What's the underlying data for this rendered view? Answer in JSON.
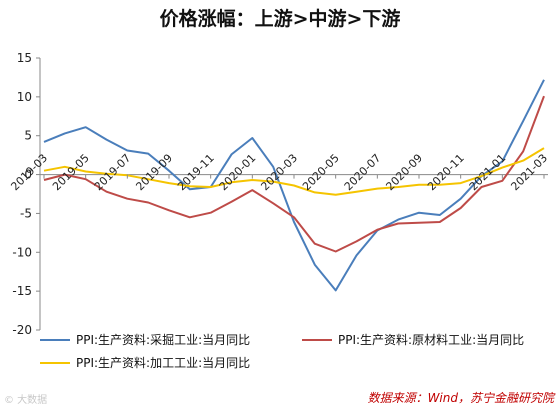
{
  "watermark": "© 大数据",
  "source_note": "数据来源：Wind，苏宁金融研究院",
  "chart_data": {
    "type": "line",
    "title": "价格涨幅：上游>中游>下游",
    "xlabel": "",
    "ylabel": "",
    "ylim": [
      -20,
      15
    ],
    "yticks": [
      15,
      10,
      5,
      0,
      -5,
      -10,
      -15,
      -20
    ],
    "grid": false,
    "legend_position": "bottom",
    "x": [
      "2019-03",
      "2019-04",
      "2019-05",
      "2019-06",
      "2019-07",
      "2019-08",
      "2019-09",
      "2019-10",
      "2019-11",
      "2019-12",
      "2020-01",
      "2020-02",
      "2020-03",
      "2020-04",
      "2020-05",
      "2020-06",
      "2020-07",
      "2020-08",
      "2020-09",
      "2020-10",
      "2020-11",
      "2020-12",
      "2021-01",
      "2021-02",
      "2021-03"
    ],
    "xtick_labels": [
      "2019-03",
      "2019-05",
      "2019-07",
      "2019-09",
      "2019-11",
      "2020-01",
      "2020-03",
      "2020-05",
      "2020-07",
      "2020-09",
      "2020-11",
      "2021-01",
      "2021-03"
    ],
    "series": [
      {
        "name": "PPI:生产资料:采掘工业:当月同比",
        "color": "#4a7ebb",
        "values": [
          4.2,
          5.3,
          6.1,
          4.5,
          3.1,
          2.7,
          0.5,
          -1.9,
          -1.6,
          2.6,
          4.7,
          1.0,
          -6.1,
          -11.6,
          -14.9,
          -10.4,
          -7.2,
          -5.8,
          -4.9,
          -5.2,
          -3.1,
          -0.2,
          1.7,
          6.9,
          12.2
        ]
      },
      {
        "name": "PPI:生产资料:原材料工业:当月同比",
        "color": "#be4b48",
        "values": [
          -0.7,
          0.0,
          -0.6,
          -2.2,
          -3.1,
          -3.6,
          -4.6,
          -5.5,
          -4.9,
          -3.5,
          -2.0,
          -3.7,
          -5.5,
          -8.9,
          -9.9,
          -8.6,
          -7.1,
          -6.3,
          -6.2,
          -6.1,
          -4.3,
          -1.6,
          -0.8,
          3.0,
          10.1
        ]
      },
      {
        "name": "PPI:生产资料:加工工业:当月同比",
        "color": "#f5c400",
        "values": [
          0.5,
          1.0,
          0.4,
          0.1,
          -0.1,
          -0.6,
          -1.1,
          -1.5,
          -1.6,
          -1.0,
          -0.7,
          -0.9,
          -1.4,
          -2.3,
          -2.6,
          -2.2,
          -1.8,
          -1.6,
          -1.3,
          -1.3,
          -1.1,
          -0.2,
          0.9,
          1.8,
          3.4
        ]
      }
    ]
  }
}
